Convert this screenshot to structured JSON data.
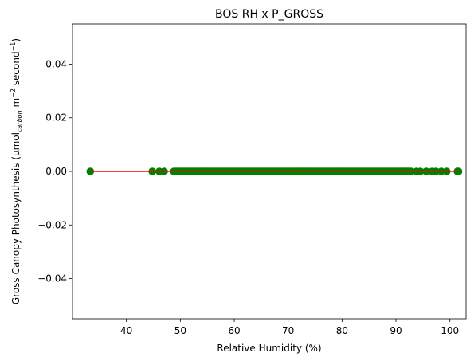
{
  "chart_data": {
    "type": "scatter",
    "title": "BOS RH x P_GROSS",
    "xlabel": "Relative Humidity (%)",
    "ylabel": {
      "prefix": "Gross Canopy Photosynthesis (µmol",
      "subscript": "carbon",
      "middle": " m",
      "sup1": "−2",
      "middle2": " second",
      "sup2": "−1",
      "suffix": ")"
    },
    "xlim": [
      30,
      103
    ],
    "ylim": [
      -0.055,
      0.055
    ],
    "xticks": [
      40,
      50,
      60,
      70,
      80,
      90,
      100
    ],
    "xtick_labels": [
      "40",
      "50",
      "60",
      "70",
      "80",
      "90",
      "100"
    ],
    "yticks": [
      -0.04,
      -0.02,
      0.0,
      0.02,
      0.04
    ],
    "ytick_labels": [
      "−0.04",
      "−0.02",
      "0.00",
      "0.02",
      "0.04"
    ],
    "grid": false,
    "series": [
      {
        "kind": "scatter",
        "color": "#008000",
        "x_range": [
          33.3,
          101.5
        ],
        "dense_x_range": [
          48.8,
          93.0
        ],
        "sparse_x": [
          33.3,
          44.8,
          46.1,
          47.0,
          93.8,
          94.5,
          95.6,
          96.7,
          97.4,
          98.4,
          99.4,
          101.4,
          101.6
        ],
        "y": 0.0
      },
      {
        "kind": "line",
        "color": "#ff0000",
        "x": [
          33.3,
          101.5
        ],
        "y": [
          0.0,
          0.0
        ]
      }
    ]
  }
}
